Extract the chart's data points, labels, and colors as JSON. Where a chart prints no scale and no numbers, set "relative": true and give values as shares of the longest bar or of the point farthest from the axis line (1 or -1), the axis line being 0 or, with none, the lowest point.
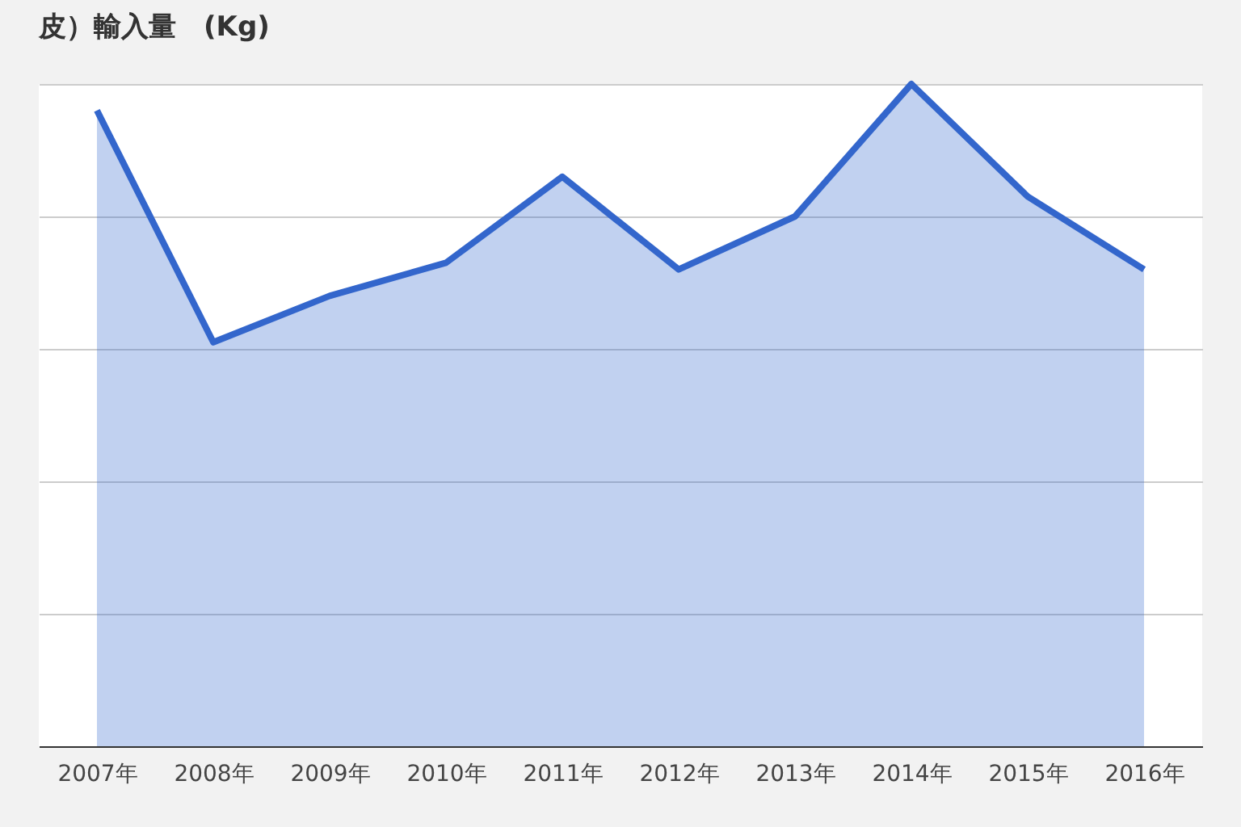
{
  "chart_data": {
    "type": "area",
    "title": "皮）輸入量　(Kg)",
    "relative": true,
    "grid": "y",
    "categories": [
      "2007年",
      "2008年",
      "2009年",
      "2010年",
      "2011年",
      "2012年",
      "2013年",
      "2014年",
      "2015年",
      "2016年"
    ],
    "series": [
      {
        "color": "#3366cc",
        "values": [
          0.96,
          0.61,
          0.68,
          0.73,
          0.86,
          0.72,
          0.8,
          1,
          0.83,
          0.72
        ]
      }
    ]
  }
}
